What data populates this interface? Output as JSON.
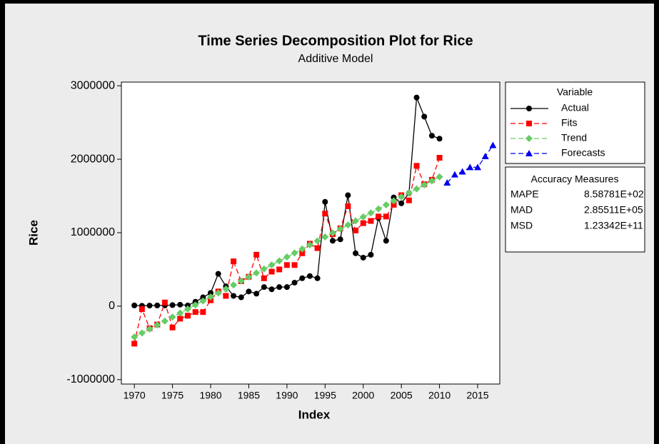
{
  "chart_data": {
    "type": "line",
    "title": "Time Series Decomposition Plot for Rice",
    "subtitle": "Additive Model",
    "xlabel": "Index",
    "ylabel": "Rice",
    "xlim": [
      1968.3,
      2017.9
    ],
    "ylim": [
      -1060000,
      3050000
    ],
    "xticks": [
      1970,
      1975,
      1980,
      1985,
      1990,
      1995,
      2000,
      2005,
      2010,
      2015
    ],
    "yticks": [
      -1000000,
      0,
      1000000,
      2000000,
      3000000
    ],
    "legend_title": "Variable",
    "series": [
      {
        "name": "Actual",
        "color": "#000000",
        "marker": "circle",
        "dash": false,
        "x": [
          1970,
          1971,
          1972,
          1973,
          1974,
          1975,
          1976,
          1977,
          1978,
          1979,
          1980,
          1981,
          1982,
          1983,
          1984,
          1985,
          1986,
          1987,
          1988,
          1989,
          1990,
          1991,
          1992,
          1993,
          1994,
          1995,
          1996,
          1997,
          1998,
          1999,
          2000,
          2001,
          2002,
          2003,
          2004,
          2005,
          2006,
          2007,
          2008,
          2009,
          2010
        ],
        "values": [
          10000,
          5000,
          8000,
          10000,
          10000,
          15000,
          20000,
          10000,
          60000,
          120000,
          180000,
          440000,
          270000,
          140000,
          120000,
          200000,
          170000,
          260000,
          230000,
          260000,
          260000,
          320000,
          380000,
          410000,
          380000,
          1420000,
          890000,
          910000,
          1510000,
          720000,
          660000,
          700000,
          1200000,
          890000,
          1480000,
          1400000,
          1540000,
          2840000,
          2580000,
          2320000,
          2280000
        ]
      },
      {
        "name": "Fits",
        "color": "#ff0000",
        "marker": "square",
        "dash": true,
        "x": [
          1970,
          1971,
          1972,
          1973,
          1974,
          1975,
          1976,
          1977,
          1978,
          1979,
          1980,
          1981,
          1982,
          1983,
          1984,
          1985,
          1986,
          1987,
          1988,
          1989,
          1990,
          1991,
          1992,
          1993,
          1994,
          1995,
          1996,
          1997,
          1998,
          1999,
          2000,
          2001,
          2002,
          2003,
          2004,
          2005,
          2006,
          2007,
          2008,
          2009,
          2010
        ],
        "values": [
          -510000,
          -40000,
          -300000,
          -250000,
          50000,
          -290000,
          -170000,
          -130000,
          -80000,
          -80000,
          80000,
          200000,
          140000,
          610000,
          340000,
          400000,
          700000,
          380000,
          470000,
          500000,
          560000,
          560000,
          720000,
          850000,
          790000,
          1260000,
          980000,
          1060000,
          1360000,
          1030000,
          1130000,
          1160000,
          1220000,
          1220000,
          1380000,
          1510000,
          1440000,
          1910000,
          1660000,
          1720000,
          2020000
        ]
      },
      {
        "name": "Trend",
        "color": "#66cc66",
        "marker": "diamond",
        "dash": true,
        "x": [
          1970,
          1971,
          1972,
          1973,
          1974,
          1975,
          1976,
          1977,
          1978,
          1979,
          1980,
          1981,
          1982,
          1983,
          1984,
          1985,
          1986,
          1987,
          1988,
          1989,
          1990,
          1991,
          1992,
          1993,
          1994,
          1995,
          1996,
          1997,
          1998,
          1999,
          2000,
          2001,
          2002,
          2003,
          2004,
          2005,
          2006,
          2007,
          2008,
          2009,
          2010
        ],
        "values": [
          -420000,
          -365500,
          -311000,
          -256500,
          -202000,
          -147500,
          -93000,
          -38500,
          16000,
          70500,
          125000,
          179500,
          234000,
          288500,
          343000,
          397500,
          452000,
          506500,
          561000,
          615500,
          670000,
          724500,
          779000,
          833500,
          888000,
          942500,
          997000,
          1051500,
          1106000,
          1160500,
          1215000,
          1269500,
          1324000,
          1378500,
          1433000,
          1487500,
          1542000,
          1596500,
          1651000,
          1705500,
          1760000
        ]
      },
      {
        "name": "Forecasts",
        "color": "#0000ee",
        "marker": "triangle",
        "dash": true,
        "x": [
          2011,
          2012,
          2013,
          2014,
          2015,
          2016,
          2017
        ],
        "values": [
          1680000,
          1790000,
          1830000,
          1890000,
          1890000,
          2040000,
          2190000
        ]
      }
    ],
    "accuracy_measures": {
      "title": "Accuracy Measures",
      "rows": [
        {
          "name": "MAPE",
          "value": "8.58781E+02"
        },
        {
          "name": "MAD",
          "value": "2.85511E+05"
        },
        {
          "name": "MSD",
          "value": "1.23342E+11"
        }
      ]
    }
  }
}
